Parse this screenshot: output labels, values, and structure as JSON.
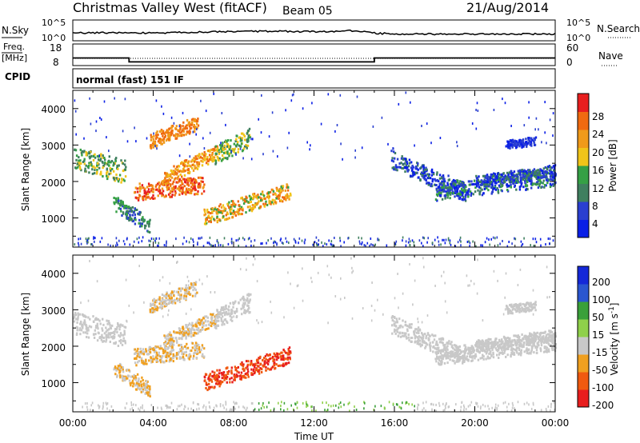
{
  "header": {
    "station": "Christmas Valley West (fitACF)",
    "beam": "Beam 05",
    "date": "21/Aug/2014"
  },
  "left_labels": {
    "nsky": "N.Sky",
    "freq": "Freq.",
    "freq_unit": "[MHz]",
    "cpid": "CPID"
  },
  "right_labels": {
    "nsearch": "N.Search",
    "nave": "Nave"
  },
  "cpid_text": "normal (fast) 151 IF",
  "time_axis": {
    "label": "Time UT",
    "ticks": [
      "00:00",
      "04:00",
      "08:00",
      "12:00",
      "16:00",
      "20:00",
      "00:00"
    ]
  },
  "colors": {
    "power": [
      "#0a1fe6",
      "#2a3fd0",
      "#3f7f5f",
      "#35a045",
      "#f0c419",
      "#f09a1a",
      "#f06a10",
      "#e81e1e"
    ],
    "velocity": [
      "#e81e1e",
      "#f05a10",
      "#f0a020",
      "#c8c8c8",
      "#8fd04a",
      "#3aa03a",
      "#2a56d0",
      "#1428d8"
    ]
  },
  "chart_data": [
    {
      "type": "line",
      "name": "noise",
      "x_range": [
        0,
        24
      ],
      "y_tick_labels_left": [
        "10^5",
        "10^0"
      ],
      "y_tick_labels_right": [
        "10^5",
        "10^0"
      ],
      "series": [
        {
          "x": [
            0,
            2,
            4,
            6,
            8,
            10,
            12,
            14,
            15,
            16,
            18,
            20,
            22,
            24
          ],
          "y": [
            0.3,
            0.35,
            0.3,
            0.4,
            0.45,
            0.5,
            0.45,
            0.55,
            0.3,
            0.2,
            0.2,
            0.2,
            0.2,
            0.2
          ]
        }
      ]
    },
    {
      "type": "line",
      "name": "frequency-nave",
      "x_range": [
        0,
        24
      ],
      "left_axis_ticks": [
        "18",
        "8"
      ],
      "right_axis_ticks": [
        "60",
        "0"
      ],
      "freq_series": {
        "x": [
          0,
          2.8,
          2.8,
          15.0,
          15.0,
          24
        ],
        "y": [
          11.5,
          11.5,
          9.7,
          9.7,
          11.5,
          11.5
        ]
      },
      "nave_series": {
        "x": [
          0,
          24
        ],
        "y": [
          20,
          20
        ]
      }
    },
    {
      "type": "heatmap",
      "name": "power",
      "xlabel": "Time UT",
      "ylabel": "Slant Range [km]",
      "x_range": [
        0,
        24
      ],
      "y_range": [
        200,
        4500
      ],
      "y_ticks": [
        1000,
        2000,
        3000,
        4000
      ],
      "colorbar": {
        "label": "Power [dB]",
        "ticks": [
          "4",
          "8",
          "12",
          "16",
          "20",
          "24",
          "28"
        ]
      }
    },
    {
      "type": "heatmap",
      "name": "velocity",
      "xlabel": "Time UT",
      "ylabel": "Slant Range [km]",
      "x_range": [
        0,
        24
      ],
      "y_range": [
        200,
        4500
      ],
      "y_ticks": [
        1000,
        2000,
        3000,
        4000
      ],
      "colorbar": {
        "label": "Velocity [m s",
        "label_sup": "-1",
        "label_end": "]",
        "ticks": [
          "200",
          "100",
          "50",
          "15",
          "-15",
          "-50",
          "-100",
          "-200"
        ]
      }
    }
  ]
}
